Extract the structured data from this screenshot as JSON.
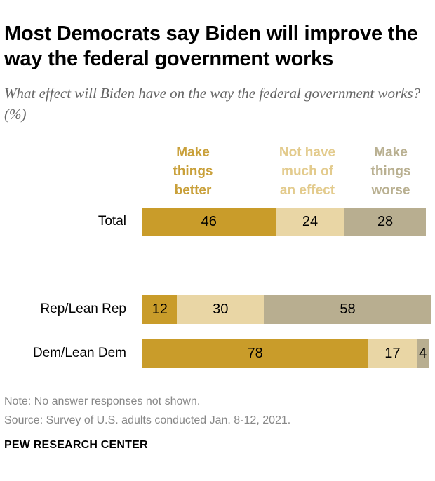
{
  "title": "Most Democrats say Biden will improve the way the federal government works",
  "subtitle": "What effect will Biden have on the way the federal government works? (%)",
  "note": "Note: No answer responses not shown.",
  "source": "Source: Survey of U.S. adults conducted Jan. 8-12, 2021.",
  "brand": "PEW RESEARCH CENTER",
  "chart_data": {
    "type": "bar",
    "orientation": "horizontal-stacked",
    "categories": [
      "Total",
      "Rep/Lean Rep",
      "Dem/Lean Dem"
    ],
    "series": [
      {
        "name": "Make things better",
        "color": "#C99C2A",
        "values": [
          46,
          12,
          78
        ]
      },
      {
        "name": "Not have much of an effect",
        "color": "#E9D6A5",
        "values": [
          24,
          30,
          17
        ]
      },
      {
        "name": "Make things worse",
        "color": "#B8AE90",
        "values": [
          28,
          58,
          4
        ]
      }
    ],
    "legend_colors": [
      "#C9A03A",
      "#E3CB8D",
      "#B9B091"
    ],
    "legend_placement": "top",
    "grid": false
  }
}
